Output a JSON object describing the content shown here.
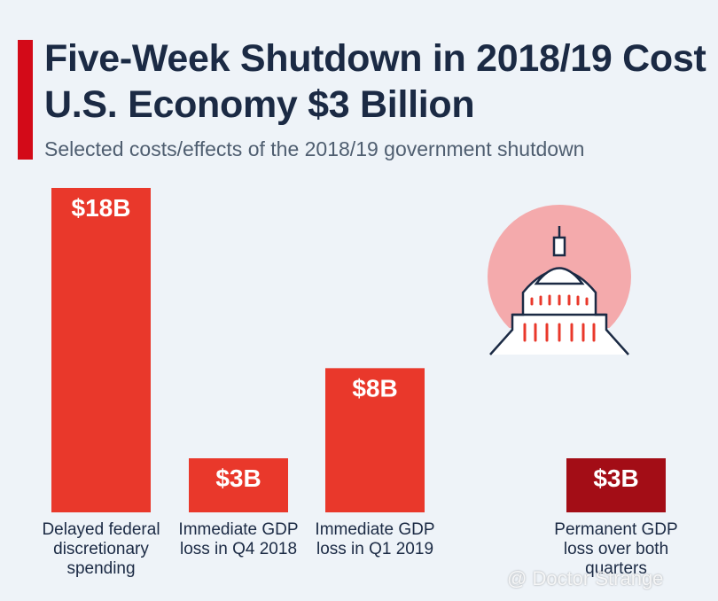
{
  "chart_data": {
    "type": "bar",
    "title": "Five-Week Shutdown in 2018/19 Cost U.S. Economy $3 Billion",
    "subtitle": "Selected costs/effects of the 2018/19 government shutdown",
    "categories": [
      "Delayed federal discretionary spending",
      "Immediate GDP loss in Q4 2018",
      "Immediate GDP loss in Q1 2019",
      "Permanent GDP loss over both quarters"
    ],
    "values": [
      18,
      3,
      8,
      3
    ],
    "value_labels": [
      "$18B",
      "$3B",
      "$8B",
      "$3B"
    ],
    "colors": [
      "#e9382b",
      "#e9382b",
      "#e9382b",
      "#a30d16"
    ],
    "watermark": "@ Doctor Strange"
  }
}
